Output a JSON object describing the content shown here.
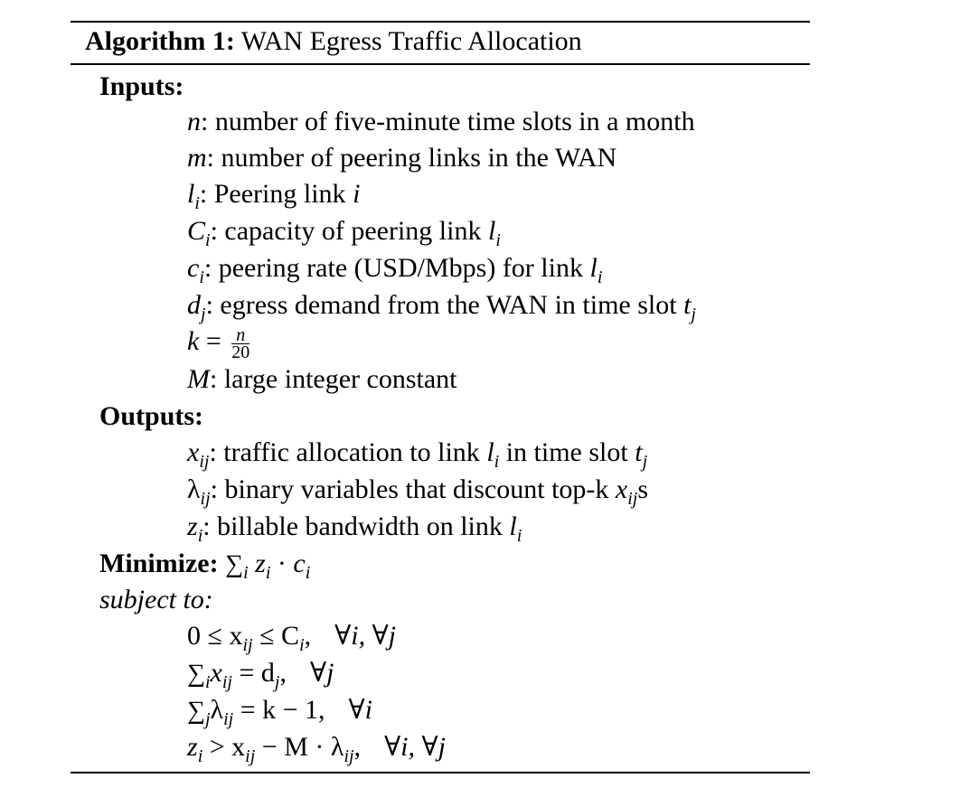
{
  "algorithm": {
    "label": "Algorithm 1:",
    "title": "WAN Egress Traffic Allocation"
  },
  "inputs": {
    "heading": "Inputs:",
    "n_desc": ": number of five-minute time slots in a month",
    "m_desc": ": number of peering links in the WAN",
    "l_desc": ": Peering link ",
    "C_desc": ": capacity of peering link ",
    "c_desc": ": peering rate (USD/Mbps) for link ",
    "d_desc": ": egress demand from the WAN in time slot ",
    "k_eq": " = ",
    "k_num": "n",
    "k_den": "20",
    "M_desc": ": large integer constant"
  },
  "outputs": {
    "heading": "Outputs:",
    "x_desc": ": traffic allocation to link ",
    "x_desc_mid": " in time slot ",
    "lambda_desc": ": binary variables that discount top-k ",
    "lambda_desc_end": "s",
    "z_desc": ": billable bandwidth on link "
  },
  "objective": {
    "heading": "Minimize:"
  },
  "constraints": {
    "heading": "subject to:",
    "c1": "0 ≤ x",
    "c1b": " ≤ C",
    "c1c": ",",
    "c1d": "∀i, ∀j",
    "c2b": " = d",
    "c2c": ",",
    "c2d": "∀j",
    "c3b": " = k − 1,",
    "c3d": "∀i",
    "c4b": " > x",
    "c4c": " − M · λ",
    "c4d": ",",
    "c4e": "∀i, ∀j"
  }
}
